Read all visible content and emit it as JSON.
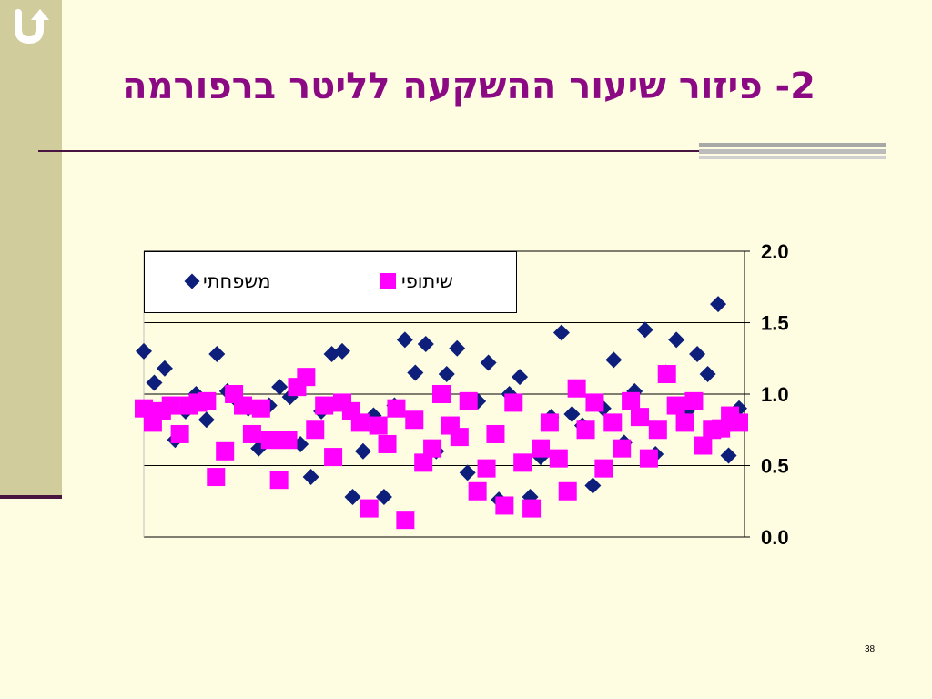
{
  "slide": {
    "title": "2- פיזור שיעור ההשקעה לליטר ברפורמה",
    "page_number": "38",
    "back_icon": "u-turn-arrow-icon"
  },
  "chart_data": {
    "type": "scatter",
    "title": "",
    "xlabel": "",
    "ylabel": "",
    "ylim": [
      0,
      2
    ],
    "y_ticks": [
      "0.0",
      "0.5",
      "1.0",
      "1.5",
      "2.0"
    ],
    "y_axis_side": "right",
    "grid": "horizontal",
    "legend_position": "top-left",
    "series": [
      {
        "name": "משפחתי",
        "marker": "diamond",
        "color": "#0D1F7A",
        "points": [
          [
            0,
            1.3
          ],
          [
            1,
            1.08
          ],
          [
            2,
            1.18
          ],
          [
            3,
            0.68
          ],
          [
            4,
            0.88
          ],
          [
            5,
            1.0
          ],
          [
            6,
            0.82
          ],
          [
            7,
            1.28
          ],
          [
            8,
            1.02
          ],
          [
            9,
            0.95
          ],
          [
            10,
            0.9
          ],
          [
            11,
            0.62
          ],
          [
            12,
            0.92
          ],
          [
            13,
            1.05
          ],
          [
            14,
            0.98
          ],
          [
            15,
            0.65
          ],
          [
            16,
            0.42
          ],
          [
            17,
            0.88
          ],
          [
            18,
            1.28
          ],
          [
            19,
            1.3
          ],
          [
            20,
            0.28
          ],
          [
            21,
            0.6
          ],
          [
            22,
            0.85
          ],
          [
            23,
            0.28
          ],
          [
            24,
            0.92
          ],
          [
            25,
            1.38
          ],
          [
            26,
            1.15
          ],
          [
            27,
            1.35
          ],
          [
            28,
            0.6
          ],
          [
            29,
            1.14
          ],
          [
            30,
            1.32
          ],
          [
            31,
            0.45
          ],
          [
            32,
            0.95
          ],
          [
            33,
            1.22
          ],
          [
            34,
            0.26
          ],
          [
            35,
            1.0
          ],
          [
            36,
            1.12
          ],
          [
            37,
            0.28
          ],
          [
            38,
            0.56
          ],
          [
            39,
            0.84
          ],
          [
            40,
            1.43
          ],
          [
            41,
            0.86
          ],
          [
            42,
            0.78
          ],
          [
            43,
            0.36
          ],
          [
            44,
            0.9
          ],
          [
            45,
            1.24
          ],
          [
            46,
            0.66
          ],
          [
            47,
            1.02
          ],
          [
            48,
            1.45
          ],
          [
            49,
            0.58
          ],
          [
            50,
            1.15
          ],
          [
            51,
            1.38
          ],
          [
            52,
            0.88
          ],
          [
            53,
            1.28
          ],
          [
            54,
            1.14
          ],
          [
            55,
            1.63
          ],
          [
            56,
            0.57
          ],
          [
            57,
            0.9
          ]
        ]
      },
      {
        "name": "שיתופי",
        "marker": "square",
        "color": "#FF00FF",
        "points": [
          [
            0,
            0.9
          ],
          [
            1,
            0.8
          ],
          [
            2,
            0.88
          ],
          [
            3,
            0.92
          ],
          [
            4,
            0.72
          ],
          [
            5,
            0.92
          ],
          [
            6,
            0.94
          ],
          [
            7,
            0.95
          ],
          [
            8,
            0.42
          ],
          [
            9,
            0.6
          ],
          [
            10,
            1.0
          ],
          [
            11,
            0.92
          ],
          [
            12,
            0.72
          ],
          [
            13,
            0.9
          ],
          [
            14,
            0.68
          ],
          [
            15,
            0.4
          ],
          [
            16,
            0.68
          ],
          [
            17,
            1.05
          ],
          [
            18,
            1.12
          ],
          [
            19,
            0.75
          ],
          [
            20,
            0.92
          ],
          [
            21,
            0.56
          ],
          [
            22,
            0.94
          ],
          [
            23,
            0.88
          ],
          [
            24,
            0.8
          ],
          [
            25,
            0.2
          ],
          [
            26,
            0.78
          ],
          [
            27,
            0.65
          ],
          [
            28,
            0.9
          ],
          [
            29,
            0.12
          ],
          [
            30,
            0.82
          ],
          [
            31,
            0.52
          ],
          [
            32,
            0.62
          ],
          [
            33,
            1.0
          ],
          [
            34,
            0.78
          ],
          [
            35,
            0.7
          ],
          [
            36,
            0.95
          ],
          [
            37,
            0.32
          ],
          [
            38,
            0.48
          ],
          [
            39,
            0.72
          ],
          [
            40,
            0.22
          ],
          [
            41,
            0.94
          ],
          [
            42,
            0.52
          ],
          [
            43,
            0.2
          ],
          [
            44,
            0.62
          ],
          [
            45,
            0.8
          ],
          [
            46,
            0.55
          ],
          [
            47,
            0.32
          ],
          [
            48,
            1.04
          ],
          [
            49,
            0.75
          ],
          [
            50,
            0.94
          ],
          [
            51,
            0.48
          ],
          [
            52,
            0.8
          ],
          [
            53,
            0.62
          ],
          [
            54,
            0.95
          ],
          [
            55,
            0.84
          ],
          [
            56,
            0.55
          ],
          [
            57,
            0.75
          ],
          [
            58,
            1.14
          ],
          [
            59,
            0.92
          ],
          [
            60,
            0.8
          ],
          [
            61,
            0.95
          ],
          [
            62,
            0.64
          ],
          [
            63,
            0.75
          ],
          [
            64,
            0.76
          ],
          [
            65,
            0.85
          ],
          [
            66,
            0.8
          ]
        ]
      }
    ]
  }
}
